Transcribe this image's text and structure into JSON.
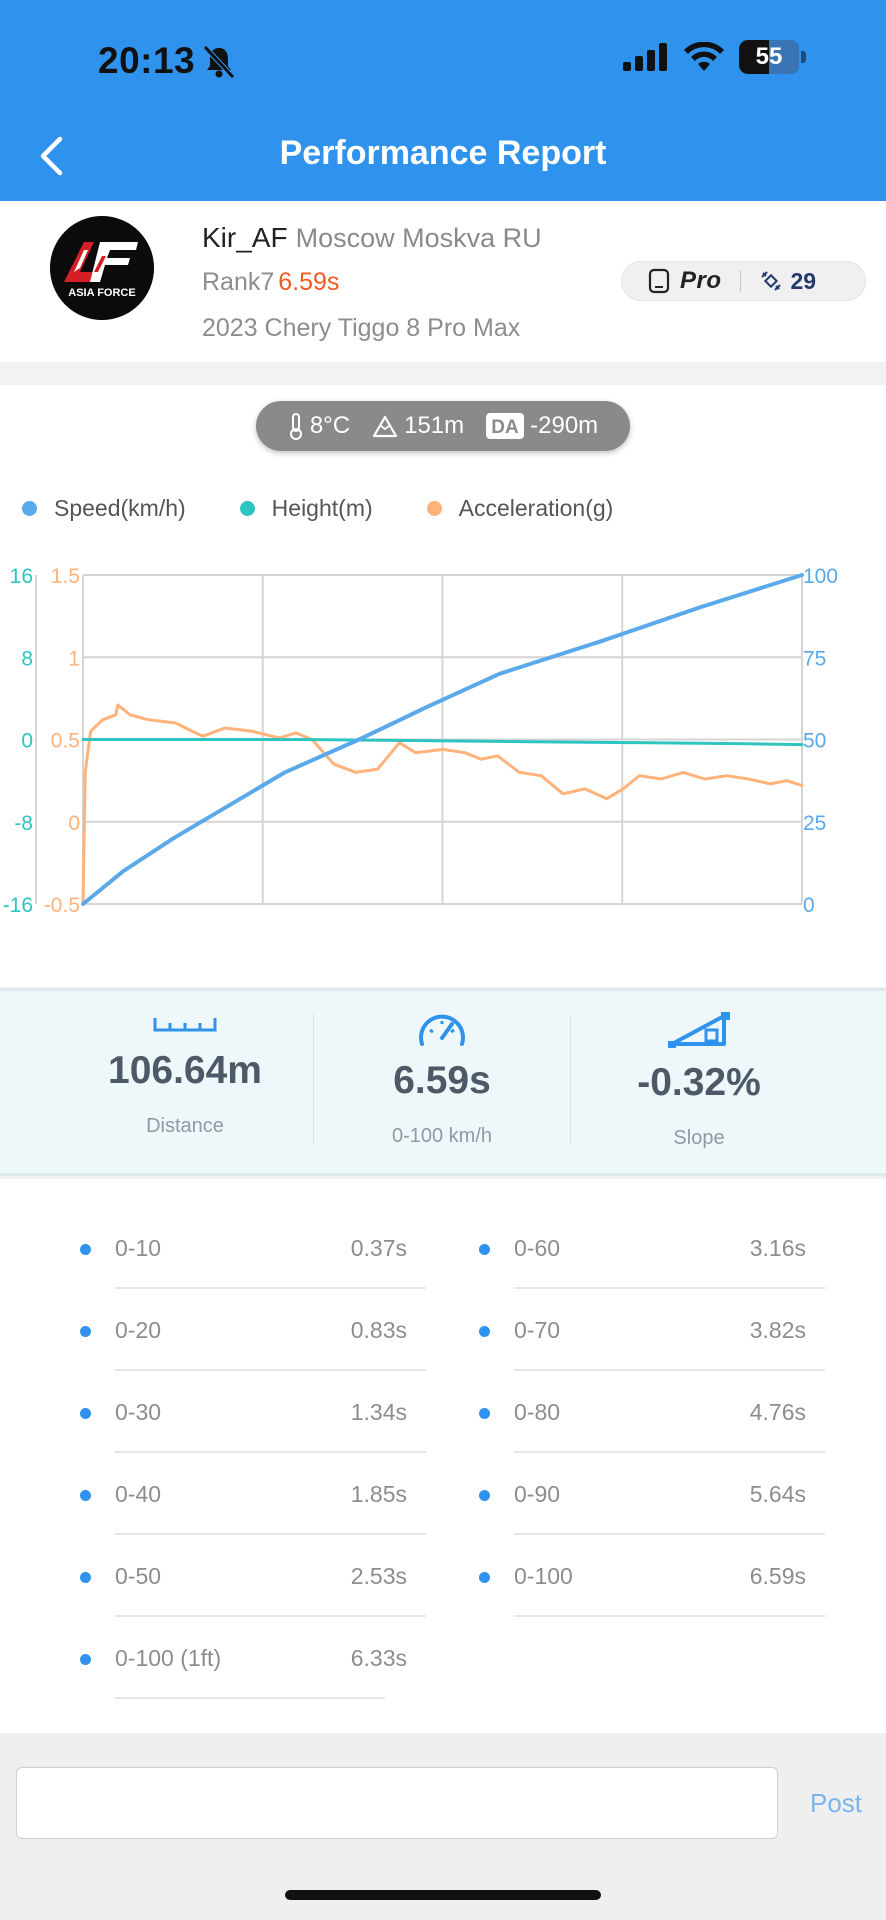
{
  "status": {
    "time": "20:13",
    "battery": "55"
  },
  "nav": {
    "title": "Performance Report"
  },
  "profile": {
    "logo_text": "ASIA FORCE",
    "username": "Kir_AF",
    "location": "Moscow Moskva RU",
    "rank_label": "Rank7",
    "rank_time": "6.59s",
    "car": "2023 Chery Tiggo 8 Pro Max",
    "device": "Pro",
    "count": "29"
  },
  "conditions": {
    "temperature": "8°C",
    "altitude": "151m",
    "da_label": "DA",
    "density_altitude": "-290m"
  },
  "colors": {
    "speed": "#5aa9ea",
    "height": "#2ec4c0",
    "accel": "#ffb27a",
    "accent": "#2f93ee"
  },
  "chart_data": {
    "type": "line",
    "legend": [
      "Speed(km/h)",
      "Height(m)",
      "Acceleration(g)"
    ],
    "x": {
      "range": [
        0,
        6.59
      ],
      "unit": "s",
      "gridlines": 4
    },
    "axes": {
      "height": {
        "ticks": [
          "16",
          "8",
          "0",
          "-8",
          "-16"
        ],
        "range": [
          -16,
          16
        ],
        "side": "left-outer"
      },
      "accel": {
        "ticks": [
          "1.5",
          "1",
          "0.5",
          "0",
          "-0.5"
        ],
        "range": [
          -0.5,
          1.5
        ],
        "side": "left-inner"
      },
      "speed": {
        "ticks": [
          "100",
          "75",
          "50",
          "25",
          "0"
        ],
        "range": [
          0,
          100
        ],
        "side": "right"
      }
    },
    "series": [
      {
        "name": "Speed(km/h)",
        "axis": "speed",
        "points": [
          [
            0,
            0
          ],
          [
            0.37,
            10
          ],
          [
            0.83,
            20
          ],
          [
            1.34,
            30
          ],
          [
            1.85,
            40
          ],
          [
            2.53,
            50
          ],
          [
            3.16,
            60
          ],
          [
            3.82,
            70
          ],
          [
            4.76,
            80
          ],
          [
            5.64,
            90
          ],
          [
            6.59,
            100
          ]
        ]
      },
      {
        "name": "Height(m)",
        "axis": "height",
        "points": [
          [
            0,
            0
          ],
          [
            1.0,
            0
          ],
          [
            2.0,
            0
          ],
          [
            3.0,
            -0.1
          ],
          [
            4.0,
            -0.2
          ],
          [
            5.0,
            -0.3
          ],
          [
            6.0,
            -0.4
          ],
          [
            6.59,
            -0.5
          ]
        ]
      },
      {
        "name": "Acceleration(g)",
        "axis": "accel",
        "points": [
          [
            0,
            -0.5
          ],
          [
            0.02,
            0.3
          ],
          [
            0.07,
            0.55
          ],
          [
            0.18,
            0.62
          ],
          [
            0.3,
            0.65
          ],
          [
            0.32,
            0.71
          ],
          [
            0.43,
            0.65
          ],
          [
            0.6,
            0.62
          ],
          [
            0.85,
            0.6
          ],
          [
            1.0,
            0.55
          ],
          [
            1.1,
            0.52
          ],
          [
            1.3,
            0.57
          ],
          [
            1.55,
            0.55
          ],
          [
            1.8,
            0.51
          ],
          [
            1.95,
            0.54
          ],
          [
            2.1,
            0.5
          ],
          [
            2.3,
            0.35
          ],
          [
            2.5,
            0.3
          ],
          [
            2.7,
            0.32
          ],
          [
            2.9,
            0.48
          ],
          [
            3.05,
            0.42
          ],
          [
            3.3,
            0.44
          ],
          [
            3.5,
            0.42
          ],
          [
            3.65,
            0.38
          ],
          [
            3.8,
            0.4
          ],
          [
            4.0,
            0.3
          ],
          [
            4.2,
            0.28
          ],
          [
            4.4,
            0.17
          ],
          [
            4.6,
            0.2
          ],
          [
            4.8,
            0.14
          ],
          [
            4.95,
            0.2
          ],
          [
            5.1,
            0.28
          ],
          [
            5.3,
            0.26
          ],
          [
            5.5,
            0.3
          ],
          [
            5.7,
            0.26
          ],
          [
            5.9,
            0.28
          ],
          [
            6.1,
            0.26
          ],
          [
            6.3,
            0.23
          ],
          [
            6.45,
            0.25
          ],
          [
            6.59,
            0.22
          ]
        ]
      }
    ],
    "grid": true,
    "legend_position": "top-left"
  },
  "stats": [
    {
      "value": "106.64m",
      "label": "Distance",
      "icon": "ruler-icon"
    },
    {
      "value": "6.59s",
      "label": "0-100 km/h",
      "icon": "speedometer-icon"
    },
    {
      "value": "-0.32%",
      "label": "Slope",
      "icon": "slope-icon"
    }
  ],
  "splits_left": [
    {
      "label": "0-10",
      "value": "0.37s"
    },
    {
      "label": "0-20",
      "value": "0.83s"
    },
    {
      "label": "0-30",
      "value": "1.34s"
    },
    {
      "label": "0-40",
      "value": "1.85s"
    },
    {
      "label": "0-50",
      "value": "2.53s"
    },
    {
      "label": "0-100 (1ft)",
      "value": "6.33s"
    }
  ],
  "splits_right": [
    {
      "label": "0-60",
      "value": "3.16s"
    },
    {
      "label": "0-70",
      "value": "3.82s"
    },
    {
      "label": "0-80",
      "value": "4.76s"
    },
    {
      "label": "0-90",
      "value": "5.64s"
    },
    {
      "label": "0-100",
      "value": "6.59s"
    }
  ],
  "comment": {
    "value": "",
    "placeholder": "",
    "post_label": "Post"
  }
}
